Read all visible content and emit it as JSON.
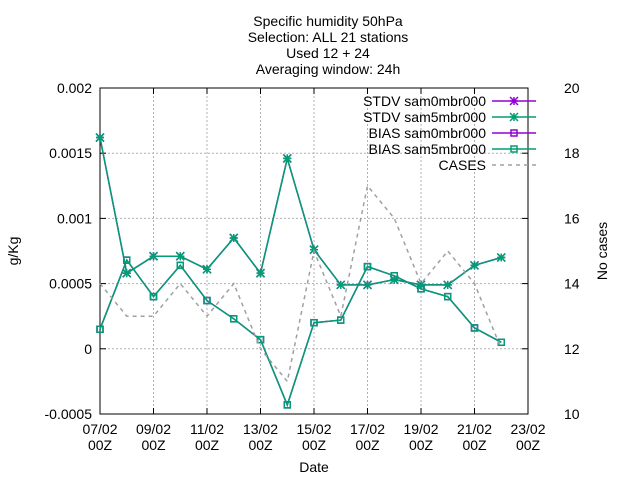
{
  "chart_data": {
    "type": "line",
    "title_lines": [
      "Specific humidity 50hPa",
      "Selection: ALL      21 stations",
      "Used 12 + 24",
      "Averaging window: 24h"
    ],
    "xlabel": "Date",
    "ylabel": "g/Kg",
    "y2label": "No cases",
    "xlim": [
      "07/02 00Z",
      "23/02 00Z"
    ],
    "ylim": [
      -0.0005,
      0.002
    ],
    "y2lim": [
      10,
      20
    ],
    "x_ticks": [
      {
        "day": 7,
        "line1": "07/02",
        "line2": "00Z"
      },
      {
        "day": 9,
        "line1": "09/02",
        "line2": "00Z"
      },
      {
        "day": 11,
        "line1": "11/02",
        "line2": "00Z"
      },
      {
        "day": 13,
        "line1": "13/02",
        "line2": "00Z"
      },
      {
        "day": 15,
        "line1": "15/02",
        "line2": "00Z"
      },
      {
        "day": 17,
        "line1": "17/02",
        "line2": "00Z"
      },
      {
        "day": 19,
        "line1": "19/02",
        "line2": "00Z"
      },
      {
        "day": 21,
        "line1": "21/02",
        "line2": "00Z"
      },
      {
        "day": 23,
        "line1": "23/02",
        "line2": "00Z"
      }
    ],
    "y_ticks": [
      {
        "v": -0.0005,
        "label": "-0.0005"
      },
      {
        "v": 0,
        "label": "0"
      },
      {
        "v": 0.0005,
        "label": "0.0005"
      },
      {
        "v": 0.001,
        "label": "0.001"
      },
      {
        "v": 0.0015,
        "label": "0.0015"
      },
      {
        "v": 0.002,
        "label": "0.002"
      }
    ],
    "y2_ticks": [
      {
        "v": 10,
        "label": "10"
      },
      {
        "v": 12,
        "label": "12"
      },
      {
        "v": 14,
        "label": "14"
      },
      {
        "v": 16,
        "label": "16"
      },
      {
        "v": 18,
        "label": "18"
      },
      {
        "v": 20,
        "label": "20"
      }
    ],
    "x": [
      7,
      8,
      9,
      10,
      11,
      12,
      13,
      14,
      15,
      16,
      17,
      18,
      19,
      20,
      21,
      22
    ],
    "series": [
      {
        "name": "STDV sam0mbr000",
        "color": "#9400d3",
        "marker": "star",
        "axis": "y",
        "values": [
          0.00162,
          0.00058,
          0.00071,
          0.00071,
          0.00061,
          0.00085,
          0.00058,
          0.00146,
          0.00076,
          0.00049,
          0.00049,
          0.00053,
          0.00049,
          0.00049,
          0.00064,
          0.0007
        ]
      },
      {
        "name": "STDV sam5mbr000",
        "color": "#009e73",
        "marker": "star",
        "axis": "y",
        "values": [
          0.00162,
          0.00058,
          0.00071,
          0.00071,
          0.00061,
          0.00085,
          0.00058,
          0.00146,
          0.00076,
          0.00049,
          0.00049,
          0.00053,
          0.00049,
          0.00049,
          0.00064,
          0.0007
        ]
      },
      {
        "name": "BIAS sam0mbr000",
        "color": "#9400d3",
        "marker": "square",
        "axis": "y",
        "values": [
          0.00015,
          0.00068,
          0.0004,
          0.00064,
          0.00037,
          0.00023,
          7e-05,
          -0.00043,
          0.0002,
          0.00022,
          0.00063,
          0.00056,
          0.00046,
          0.0004,
          0.00016,
          5e-05
        ]
      },
      {
        "name": "BIAS sam5mbr000",
        "color": "#009e73",
        "marker": "square",
        "axis": "y",
        "values": [
          0.00015,
          0.00068,
          0.0004,
          0.00064,
          0.00037,
          0.00023,
          7e-05,
          -0.00043,
          0.0002,
          0.00022,
          0.00063,
          0.00056,
          0.00046,
          0.0004,
          0.00016,
          5e-05
        ]
      },
      {
        "name": "CASES",
        "color": "#a0a0a0",
        "marker": "none",
        "dashed": true,
        "axis": "y2",
        "values": [
          14,
          13,
          13,
          14,
          13,
          14,
          12,
          11,
          15,
          13,
          17,
          16,
          14,
          15,
          14,
          12
        ]
      }
    ],
    "legend_position": "top-right",
    "grid": true
  }
}
